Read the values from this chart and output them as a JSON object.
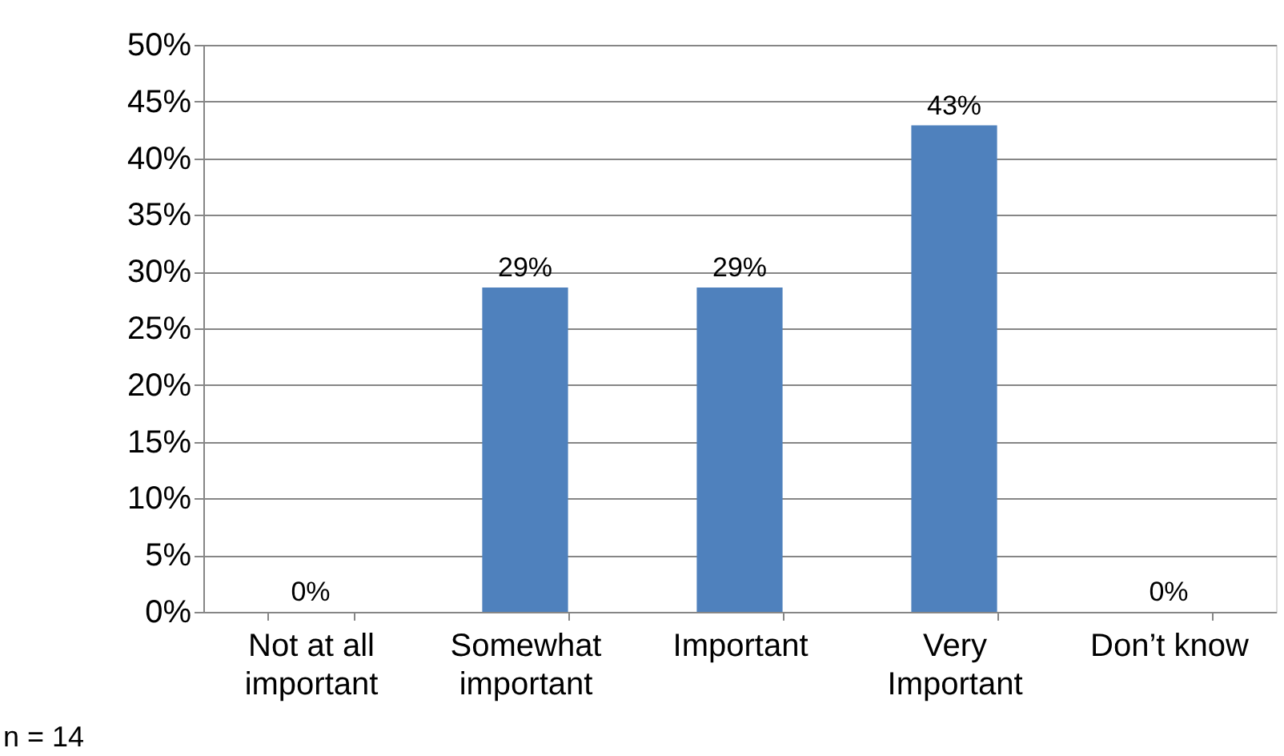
{
  "chart_data": {
    "type": "bar",
    "categories": [
      "Not at all\nimportant",
      "Somewhat\nimportant",
      "Important",
      "Very\nImportant",
      "Don’t know"
    ],
    "values": [
      0,
      28.6,
      28.6,
      42.9,
      0
    ],
    "value_labels": [
      "0%",
      "29%",
      "29%",
      "43%",
      "0%"
    ],
    "color": "#4f81bd",
    "ylim": [
      0,
      50
    ],
    "yticks": [
      {
        "value": 0,
        "label": "0%"
      },
      {
        "value": 5,
        "label": "5%"
      },
      {
        "value": 10,
        "label": "10%"
      },
      {
        "value": 15,
        "label": "15%"
      },
      {
        "value": 20,
        "label": "20%"
      },
      {
        "value": 25,
        "label": "25%"
      },
      {
        "value": 30,
        "label": "30%"
      },
      {
        "value": 35,
        "label": "35%"
      },
      {
        "value": 40,
        "label": "40%"
      },
      {
        "value": 45,
        "label": "45%"
      },
      {
        "value": 50,
        "label": "50%"
      }
    ],
    "grid": "y",
    "annotations": [
      "n = 14"
    ]
  }
}
